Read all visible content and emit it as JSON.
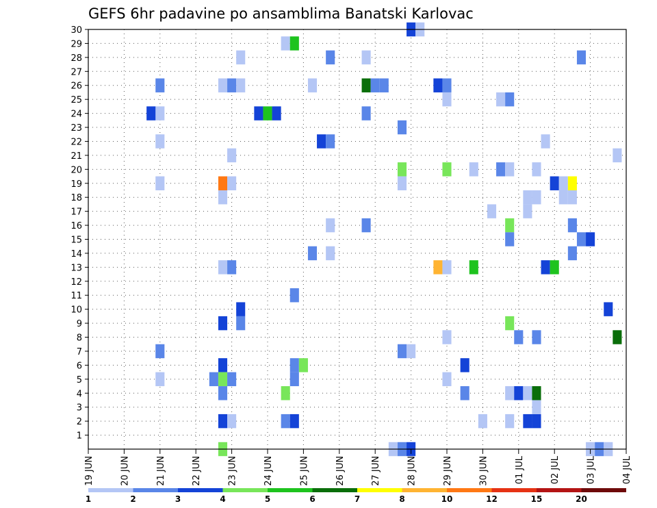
{
  "chart_data": {
    "type": "heatmap",
    "title": "GEFS 6hr padavine po ansamblima Banatski Karlovac",
    "x_ticks": [
      "19 JUN",
      "20 JUN",
      "21 JUN",
      "22 JUN",
      "23 JUN",
      "24 JUN",
      "25 JUN",
      "26 JUN",
      "27 JUN",
      "28 JUN",
      "29 JUN",
      "30 JUN",
      "01 JUL",
      "02 JUL",
      "03 JUL",
      "04 JUL"
    ],
    "y_ticks": [
      "1",
      "2",
      "3",
      "4",
      "5",
      "6",
      "7",
      "8",
      "9",
      "10",
      "11",
      "12",
      "13",
      "14",
      "15",
      "16",
      "17",
      "18",
      "19",
      "20",
      "21",
      "22",
      "23",
      "24",
      "25",
      "26",
      "27",
      "28",
      "29",
      "30"
    ],
    "xlim": [
      "19 JUN",
      "04 JUL"
    ],
    "ylim": [
      0,
      30
    ],
    "grid": true,
    "colorbar": {
      "thresholds": [
        "1",
        "2",
        "3",
        "4",
        "5",
        "6",
        "7",
        "8",
        "10",
        "12",
        "15",
        "20"
      ],
      "colors": [
        "#b4c6f5",
        "#5a86e8",
        "#1443d7",
        "#78e65a",
        "#1ec31e",
        "#0a6e0a",
        "#ffff00",
        "#ffb432",
        "#ff7814",
        "#e63214",
        "#b41414",
        "#6e0a0a"
      ]
    },
    "cells": [
      [
        21.0,
        26,
        1
      ],
      [
        21.0,
        24,
        0
      ],
      [
        21.0,
        22,
        0
      ],
      [
        21.0,
        19,
        0
      ],
      [
        21.0,
        7,
        1
      ],
      [
        21.0,
        5,
        0
      ],
      [
        20.75,
        24,
        2
      ],
      [
        22.75,
        26,
        0
      ],
      [
        23.0,
        26,
        1
      ],
      [
        23.25,
        26,
        0
      ],
      [
        23.25,
        28,
        0
      ],
      [
        23.0,
        21,
        0
      ],
      [
        22.75,
        19,
        8
      ],
      [
        23.0,
        19,
        0
      ],
      [
        22.75,
        18,
        0
      ],
      [
        22.75,
        13,
        0
      ],
      [
        23.0,
        13,
        1
      ],
      [
        22.75,
        9,
        2
      ],
      [
        23.25,
        9,
        1
      ],
      [
        23.25,
        10,
        2
      ],
      [
        22.75,
        6,
        2
      ],
      [
        22.5,
        5,
        1
      ],
      [
        22.75,
        5,
        3
      ],
      [
        23.0,
        5,
        1
      ],
      [
        22.75,
        4,
        1
      ],
      [
        22.75,
        2,
        2
      ],
      [
        23.0,
        2,
        0
      ],
      [
        22.75,
        0,
        3
      ],
      [
        23.75,
        24,
        2
      ],
      [
        24.0,
        24,
        4
      ],
      [
        24.25,
        24,
        2
      ],
      [
        24.5,
        29,
        0
      ],
      [
        24.75,
        29,
        4
      ],
      [
        24.75,
        11,
        1
      ],
      [
        24.75,
        6,
        1
      ],
      [
        25.0,
        6,
        3
      ],
      [
        24.75,
        5,
        1
      ],
      [
        24.5,
        4,
        3
      ],
      [
        24.5,
        2,
        1
      ],
      [
        24.75,
        2,
        2
      ],
      [
        25.25,
        26,
        0
      ],
      [
        25.75,
        28,
        1
      ],
      [
        25.5,
        22,
        2
      ],
      [
        25.75,
        22,
        1
      ],
      [
        25.75,
        16,
        0
      ],
      [
        25.25,
        14,
        1
      ],
      [
        25.75,
        14,
        0
      ],
      [
        26.75,
        28,
        0
      ],
      [
        26.75,
        26,
        5
      ],
      [
        27.0,
        26,
        1
      ],
      [
        27.25,
        26,
        1
      ],
      [
        26.75,
        24,
        1
      ],
      [
        26.75,
        16,
        1
      ],
      [
        28.0,
        30,
        2
      ],
      [
        28.25,
        30,
        0
      ],
      [
        27.75,
        23,
        1
      ],
      [
        27.75,
        20,
        3
      ],
      [
        27.75,
        19,
        0
      ],
      [
        27.75,
        7,
        1
      ],
      [
        28.0,
        7,
        0
      ],
      [
        27.5,
        0,
        0
      ],
      [
        27.75,
        0,
        1
      ],
      [
        28.0,
        0,
        2
      ],
      [
        28.75,
        26,
        2
      ],
      [
        29.0,
        26,
        1
      ],
      [
        29.0,
        25,
        0
      ],
      [
        29.0,
        20,
        3
      ],
      [
        28.75,
        13,
        7
      ],
      [
        29.0,
        13,
        0
      ],
      [
        29.0,
        8,
        0
      ],
      [
        29.0,
        5,
        0
      ],
      [
        29.5,
        6,
        2
      ],
      [
        29.5,
        4,
        1
      ],
      [
        29.75,
        20,
        0
      ],
      [
        29.75,
        13,
        4
      ],
      [
        30.25,
        17,
        0
      ],
      [
        30.5,
        20,
        1
      ],
      [
        30.75,
        20,
        0
      ],
      [
        30.5,
        25,
        0
      ],
      [
        30.75,
        25,
        1
      ],
      [
        30.0,
        2,
        0
      ],
      [
        30.75,
        16,
        3
      ],
      [
        30.75,
        9,
        3
      ],
      [
        30.75,
        4,
        0
      ],
      [
        30.75,
        2,
        0
      ],
      [
        31.0,
        4,
        2
      ],
      [
        31.25,
        4,
        0
      ],
      [
        31.5,
        4,
        5
      ],
      [
        31.0,
        8,
        1
      ],
      [
        31.5,
        8,
        1
      ],
      [
        31.25,
        18,
        0
      ],
      [
        31.5,
        18,
        0
      ],
      [
        31.25,
        17,
        0
      ],
      [
        31.5,
        20,
        0
      ],
      [
        31.25,
        2,
        2
      ],
      [
        31.5,
        2,
        2
      ],
      [
        31.5,
        3,
        0
      ],
      [
        30.75,
        15,
        1
      ],
      [
        31.75,
        22,
        0
      ],
      [
        32.0,
        19,
        2
      ],
      [
        32.25,
        19,
        0
      ],
      [
        32.5,
        19,
        6
      ],
      [
        32.25,
        18,
        0
      ],
      [
        32.5,
        18,
        0
      ],
      [
        31.75,
        13,
        2
      ],
      [
        32.0,
        13,
        4
      ],
      [
        32.5,
        16,
        1
      ],
      [
        32.5,
        14,
        1
      ],
      [
        32.75,
        15,
        1
      ],
      [
        33.0,
        15,
        2
      ],
      [
        32.75,
        28,
        1
      ],
      [
        33.5,
        10,
        2
      ],
      [
        33.75,
        21,
        0
      ],
      [
        33.75,
        8,
        5
      ],
      [
        33.0,
        0,
        0
      ],
      [
        33.25,
        0,
        1
      ],
      [
        33.5,
        0,
        0
      ]
    ]
  }
}
